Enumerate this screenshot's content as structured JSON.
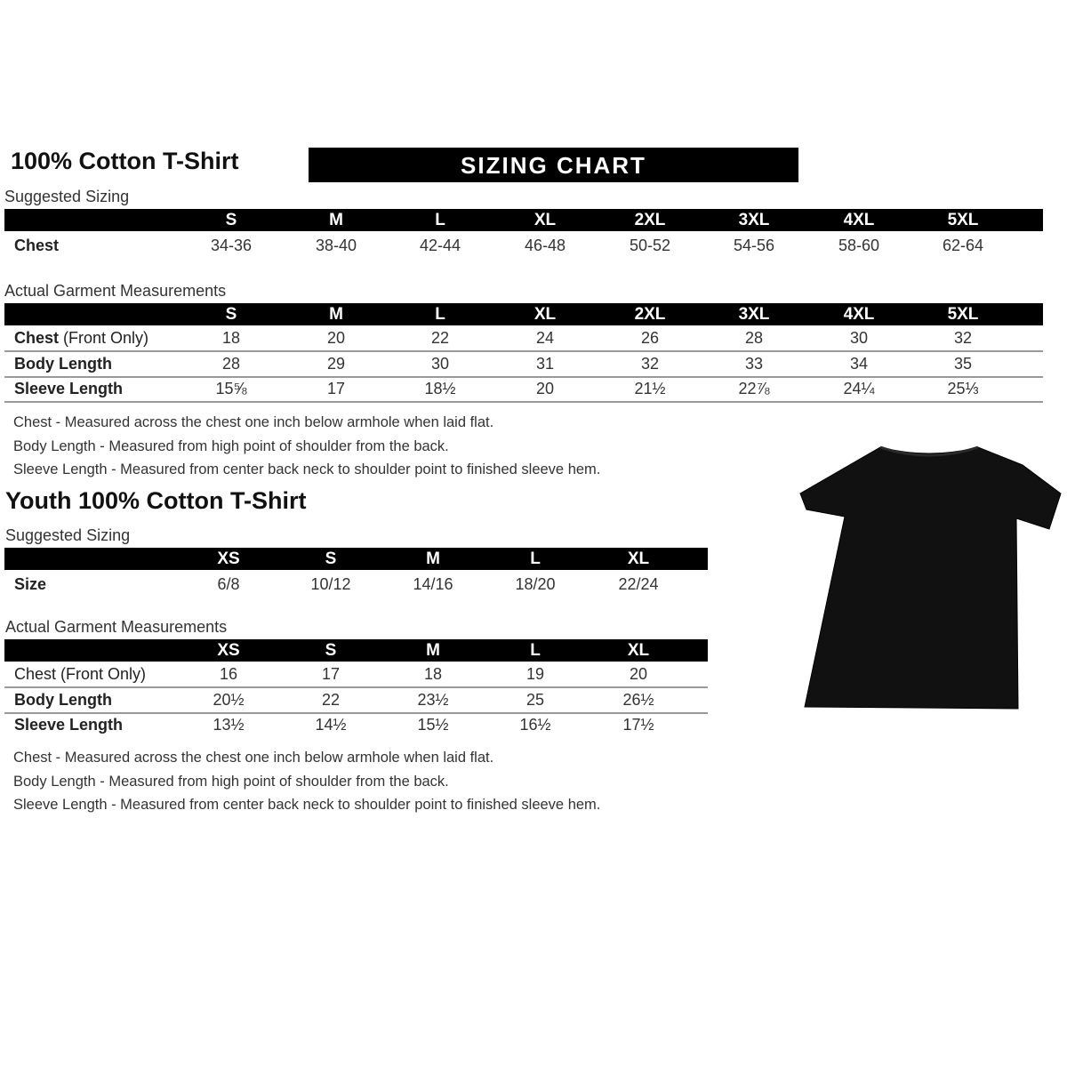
{
  "adult": {
    "title": "100% Cotton T-Shirt",
    "banner": "SIZING CHART",
    "suggested_label": "Suggested Sizing",
    "sizes": [
      "S",
      "M",
      "L",
      "XL",
      "2XL",
      "3XL",
      "4XL",
      "5XL"
    ],
    "suggested_rows": [
      {
        "label": "Chest",
        "values": [
          "34-36",
          "38-40",
          "42-44",
          "46-48",
          "50-52",
          "54-56",
          "58-60",
          "62-64"
        ]
      }
    ],
    "actual_label": "Actual Garment Measurements",
    "actual_rows": [
      {
        "label": "Chest",
        "label_extra": " (Front Only)",
        "values": [
          "18",
          "20",
          "22",
          "24",
          "26",
          "28",
          "30",
          "32"
        ]
      },
      {
        "label": "Body Length",
        "label_extra": "",
        "values": [
          "28",
          "29",
          "30",
          "31",
          "32",
          "33",
          "34",
          "35"
        ]
      },
      {
        "label": "Sleeve Length",
        "label_extra": "",
        "values": [
          "15⅝",
          "17",
          "18½",
          "20",
          "21½",
          "22⅞",
          "24¼",
          "25⅓"
        ]
      }
    ],
    "notes": [
      "Chest - Measured across the chest one inch below armhole when laid flat.",
      "Body Length - Measured from high point of shoulder from the back.",
      "Sleeve Length - Measured from center back neck to shoulder point to finished sleeve hem."
    ]
  },
  "youth": {
    "title": "Youth 100% Cotton T-Shirt",
    "suggested_label": "Suggested Sizing",
    "sizes": [
      "XS",
      "S",
      "M",
      "L",
      "XL"
    ],
    "suggested_rows": [
      {
        "label": "Size",
        "values": [
          "6/8",
          "10/12",
          "14/16",
          "18/20",
          "22/24"
        ]
      }
    ],
    "actual_label": "Actual Garment Measurements",
    "actual_rows": [
      {
        "label": "Chest (Front Only)",
        "values": [
          "16",
          "17",
          "18",
          "19",
          "20"
        ]
      },
      {
        "label": "Body Length",
        "values": [
          "20½",
          "22",
          "23½",
          "25",
          "26½"
        ]
      },
      {
        "label": "Sleeve Length",
        "values": [
          "13½",
          "14½",
          "15½",
          "16½",
          "17½"
        ]
      }
    ],
    "notes": [
      "Chest - Measured across the chest one inch below armhole when laid flat.",
      "Body Length - Measured from high point of shoulder from the back.",
      "Sleeve Length - Measured from center back neck to shoulder point to finished sleeve hem."
    ]
  },
  "tshirt_color": "#111111"
}
